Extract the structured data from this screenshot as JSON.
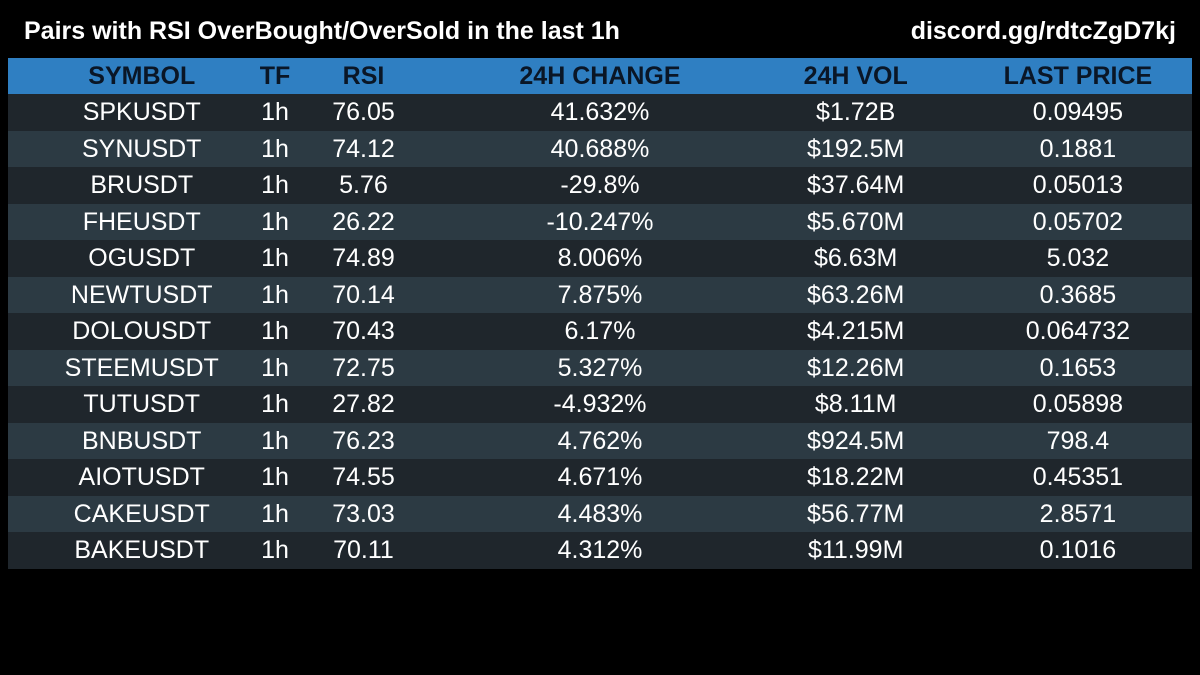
{
  "header": {
    "title": "Pairs with RSI OverBought/OverSold in the last 1h",
    "link": "discord.gg/rdtcZgD7kj"
  },
  "colors": {
    "background": "#000000",
    "header_row": "#2f7fc2",
    "row_dark": "#1f262c",
    "row_light": "#2c3a43",
    "text": "#ffffff"
  },
  "table": {
    "columns": [
      "SYMBOL",
      "TF",
      "RSI",
      "24H CHANGE",
      "24H VOL",
      "LAST PRICE"
    ],
    "rows": [
      [
        "SPKUSDT",
        "1h",
        "76.05",
        "41.632%",
        "$1.72B",
        "0.09495"
      ],
      [
        "SYNUSDT",
        "1h",
        "74.12",
        "40.688%",
        "$192.5M",
        "0.1881"
      ],
      [
        "BRUSDT",
        "1h",
        "5.76",
        "-29.8%",
        "$37.64M",
        "0.05013"
      ],
      [
        "FHEUSDT",
        "1h",
        "26.22",
        "-10.247%",
        "$5.670M",
        "0.05702"
      ],
      [
        "OGUSDT",
        "1h",
        "74.89",
        "8.006%",
        "$6.63M",
        "5.032"
      ],
      [
        "NEWTUSDT",
        "1h",
        "70.14",
        "7.875%",
        "$63.26M",
        "0.3685"
      ],
      [
        "DOLOUSDT",
        "1h",
        "70.43",
        "6.17%",
        "$4.215M",
        "0.064732"
      ],
      [
        "STEEMUSDT",
        "1h",
        "72.75",
        "5.327%",
        "$12.26M",
        "0.1653"
      ],
      [
        "TUTUSDT",
        "1h",
        "27.82",
        "-4.932%",
        "$8.11M",
        "0.05898"
      ],
      [
        "BNBUSDT",
        "1h",
        "76.23",
        "4.762%",
        "$924.5M",
        "798.4"
      ],
      [
        "AIOTUSDT",
        "1h",
        "74.55",
        "4.671%",
        "$18.22M",
        "0.45351"
      ],
      [
        "CAKEUSDT",
        "1h",
        "73.03",
        "4.483%",
        "$56.77M",
        "2.8571"
      ],
      [
        "BAKEUSDT",
        "1h",
        "70.11",
        "4.312%",
        "$11.99M",
        "0.1016"
      ]
    ]
  }
}
